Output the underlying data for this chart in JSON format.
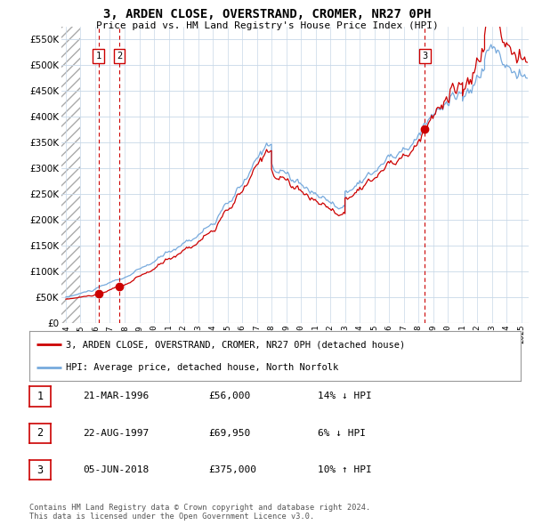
{
  "title": "3, ARDEN CLOSE, OVERSTRAND, CROMER, NR27 0PH",
  "subtitle": "Price paid vs. HM Land Registry's House Price Index (HPI)",
  "ylim": [
    0,
    575000
  ],
  "yticks": [
    0,
    50000,
    100000,
    150000,
    200000,
    250000,
    300000,
    350000,
    400000,
    450000,
    500000,
    550000
  ],
  "xlim_start": 1993.7,
  "xlim_end": 2025.5,
  "hatch_end": 1995.0,
  "bg_color": "#ddeeff",
  "grid_color": "#c8d8e8",
  "sale_dates": [
    1996.22,
    1997.65,
    2018.43
  ],
  "sale_prices": [
    56000,
    69950,
    375000
  ],
  "sale_labels": [
    "1",
    "2",
    "3"
  ],
  "legend_property": "3, ARDEN CLOSE, OVERSTRAND, CROMER, NR27 0PH (detached house)",
  "legend_hpi": "HPI: Average price, detached house, North Norfolk",
  "table_rows": [
    {
      "num": "1",
      "date": "21-MAR-1996",
      "price": "£56,000",
      "pct": "14% ↓ HPI"
    },
    {
      "num": "2",
      "date": "22-AUG-1997",
      "price": "£69,950",
      "pct": "6% ↓ HPI"
    },
    {
      "num": "3",
      "date": "05-JUN-2018",
      "price": "£375,000",
      "pct": "10% ↑ HPI"
    }
  ],
  "footer": "Contains HM Land Registry data © Crown copyright and database right 2024.\nThis data is licensed under the Open Government Licence v3.0.",
  "property_line_color": "#cc0000",
  "hpi_line_color": "#77aadd",
  "sale_marker_color": "#cc0000",
  "dashed_line_color": "#cc0000",
  "hpi_seed": 10,
  "prop_seed": 20
}
